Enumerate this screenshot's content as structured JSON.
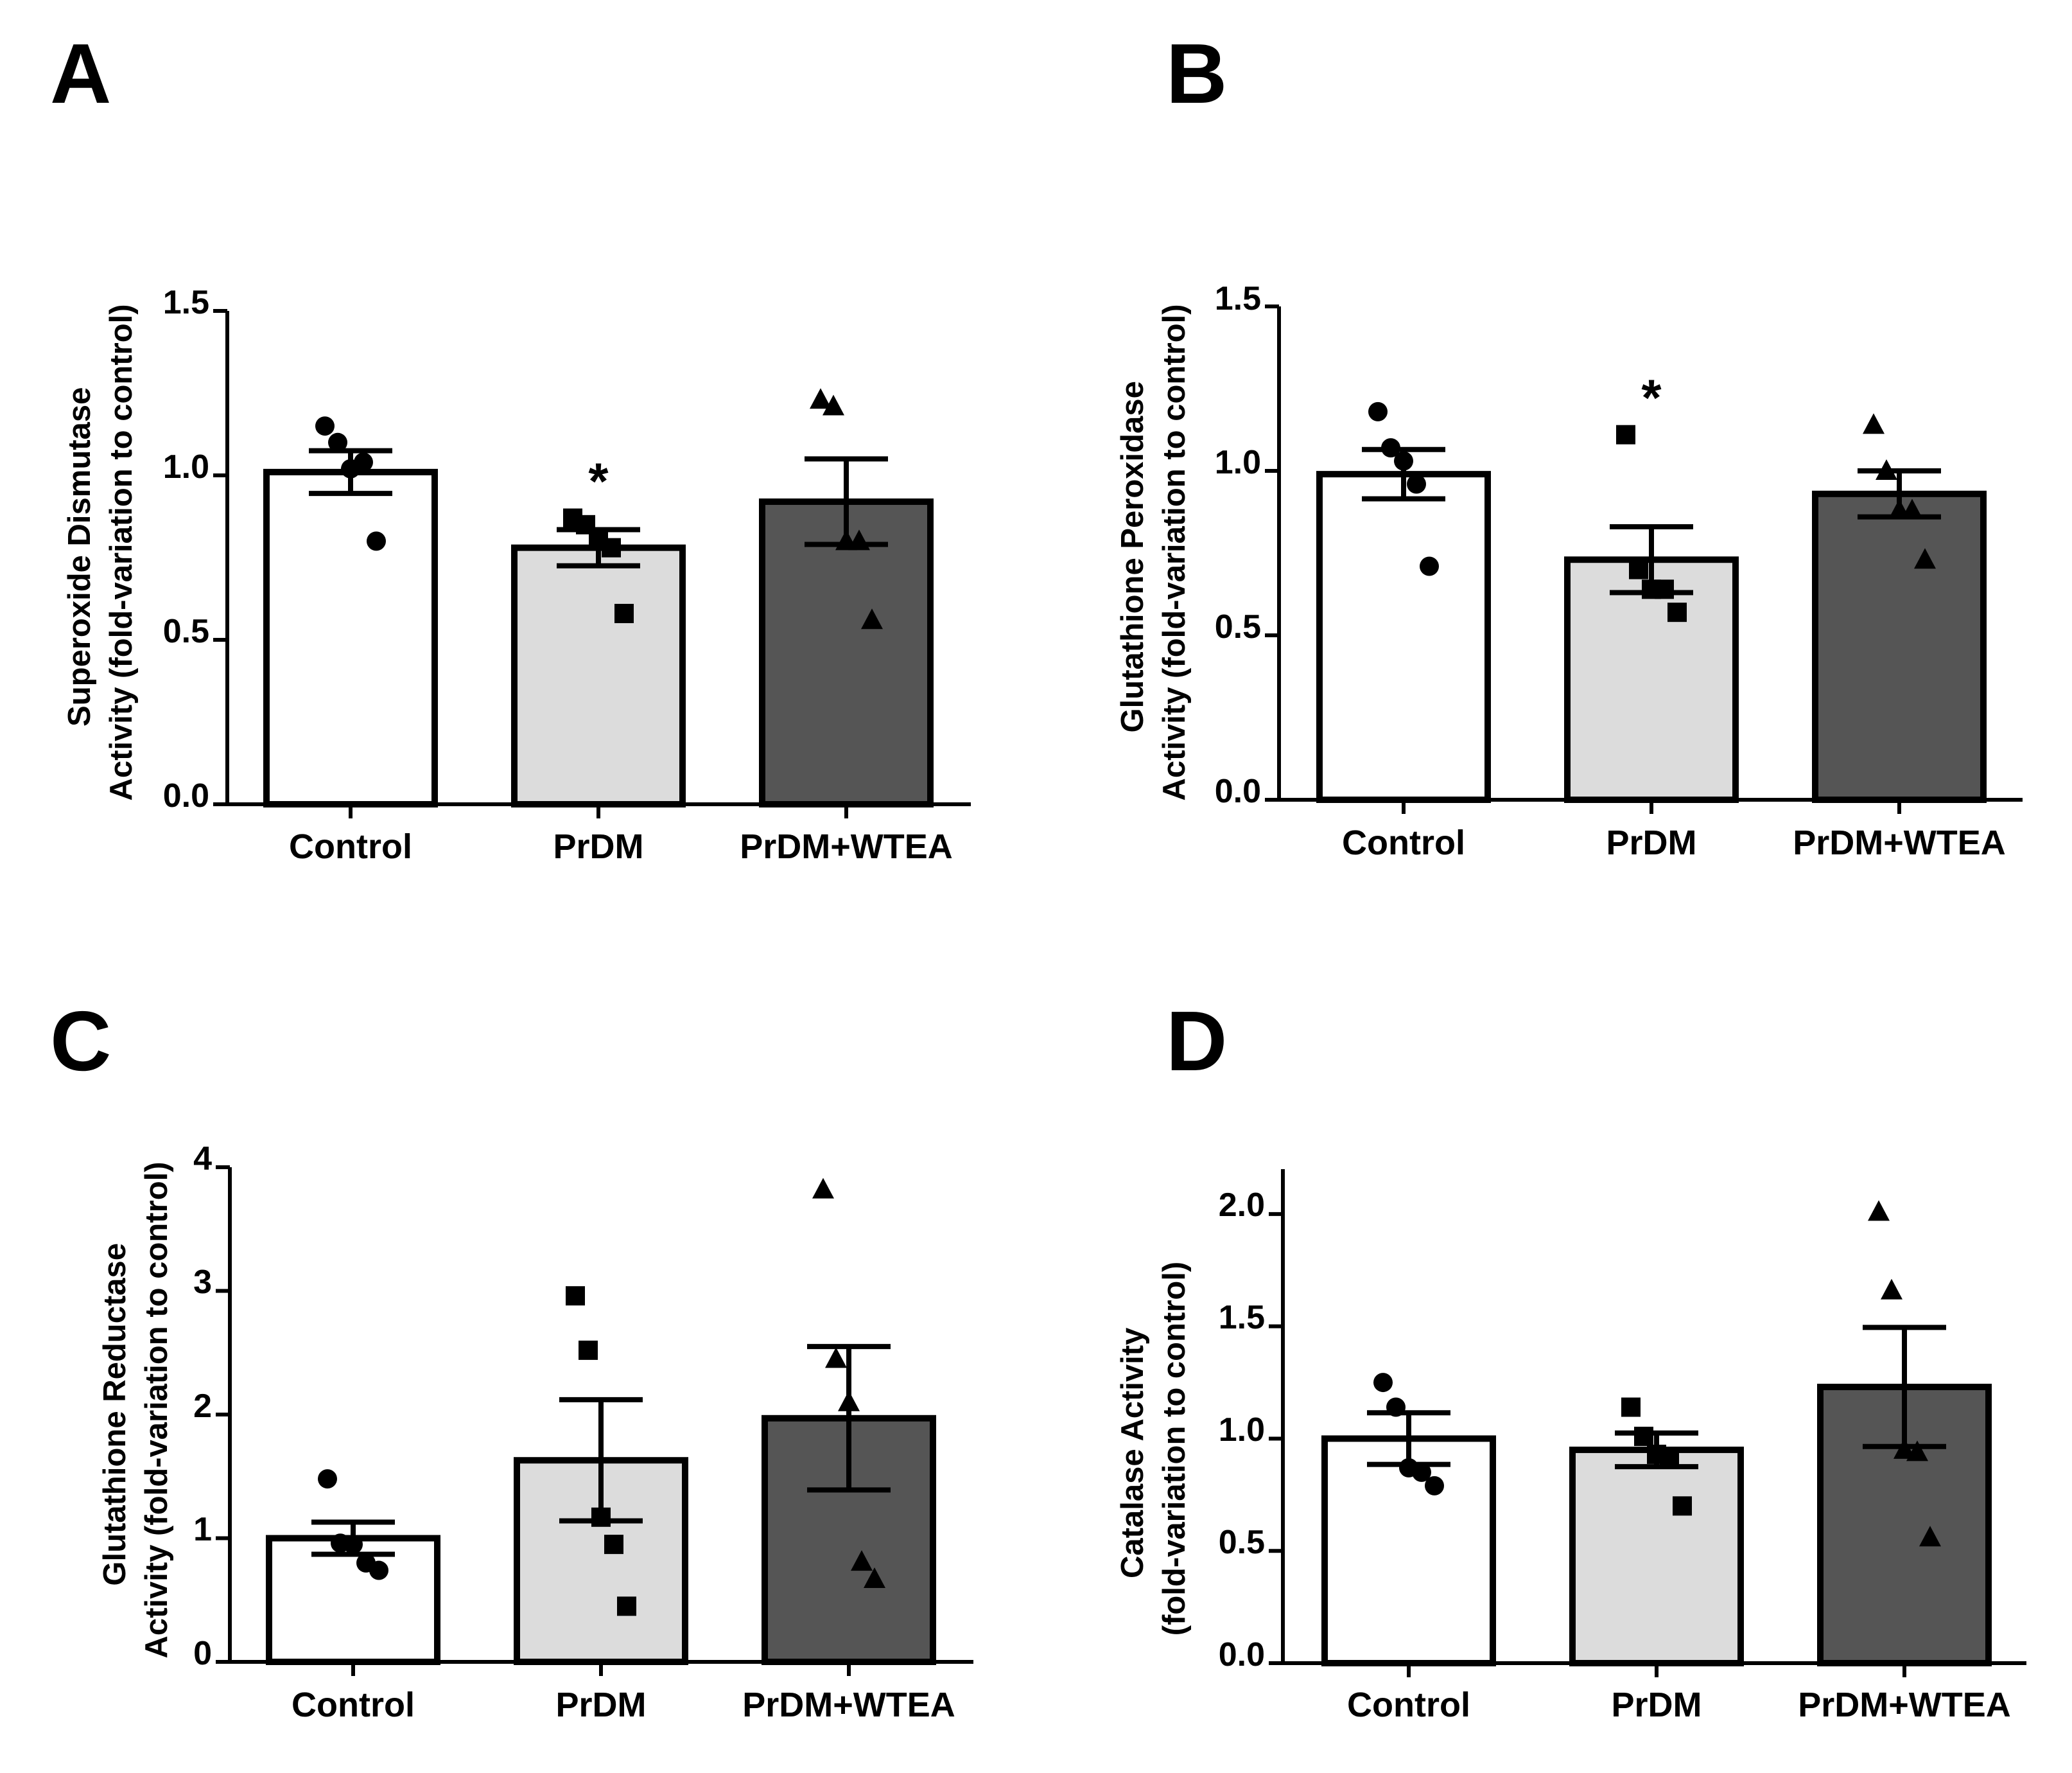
{
  "figure": {
    "colors": {
      "axis": "#000000",
      "bar_stroke": "#000000",
      "point": "#000000"
    }
  },
  "chart_data": [
    {
      "type": "bar",
      "panel": "A",
      "ylabel_lines": [
        "Superoxide Dismutase",
        "Activity (fold-variation to control)"
      ],
      "categories": [
        "Control",
        "PrDM",
        "PrDM+WTEA"
      ],
      "colors": [
        "#ffffff",
        "#dcdcdc",
        "#555555"
      ],
      "markers": [
        "circle",
        "square",
        "triangle"
      ],
      "ylim": [
        0,
        1.5
      ],
      "yticks": [
        0.0,
        0.5,
        1.0,
        1.5
      ],
      "ytick_labels": [
        "0.0",
        "0.5",
        "1.0",
        "1.5"
      ],
      "values": [
        1.01,
        0.78,
        0.92
      ],
      "sem": [
        0.065,
        0.055,
        0.13
      ],
      "points": [
        [
          1.15,
          1.1,
          1.02,
          1.04,
          0.8
        ],
        [
          0.87,
          0.85,
          0.8,
          0.78,
          0.58
        ],
        [
          1.23,
          1.21,
          0.8,
          0.8,
          0.56
        ]
      ],
      "significance": [
        "",
        "*",
        ""
      ]
    },
    {
      "type": "bar",
      "panel": "B",
      "ylabel_lines": [
        "Glutathione Peroxidase",
        "Activity (fold-variation to control)"
      ],
      "categories": [
        "Control",
        "PrDM",
        "PrDM+WTEA"
      ],
      "colors": [
        "#ffffff",
        "#dcdcdc",
        "#555555"
      ],
      "markers": [
        "circle",
        "square",
        "triangle"
      ],
      "ylim": [
        0,
        1.5
      ],
      "yticks": [
        0.0,
        0.5,
        1.0,
        1.5
      ],
      "ytick_labels": [
        "0.0",
        "0.5",
        "1.0",
        "1.5"
      ],
      "values": [
        0.99,
        0.73,
        0.93
      ],
      "sem": [
        0.075,
        0.1,
        0.07
      ],
      "points": [
        [
          1.18,
          1.07,
          1.03,
          0.96,
          0.71
        ],
        [
          1.11,
          0.7,
          0.64,
          0.64,
          0.57
        ],
        [
          1.14,
          1.0,
          0.88,
          0.88,
          0.73
        ]
      ],
      "significance": [
        "",
        "*",
        ""
      ]
    },
    {
      "type": "bar",
      "panel": "C",
      "ylabel_lines": [
        "Glutathione Reductase",
        "Activity (fold-variation to control)"
      ],
      "categories": [
        "Control",
        "PrDM",
        "PrDM+WTEA"
      ],
      "colors": [
        "#ffffff",
        "#dcdcdc",
        "#555555"
      ],
      "markers": [
        "circle",
        "square",
        "triangle"
      ],
      "ylim": [
        0,
        4
      ],
      "yticks": [
        0,
        1,
        2,
        3,
        4
      ],
      "ytick_labels": [
        "0",
        "1",
        "2",
        "3",
        "4"
      ],
      "values": [
        1.0,
        1.63,
        1.97
      ],
      "sem": [
        0.13,
        0.49,
        0.58
      ],
      "points": [
        [
          1.48,
          0.96,
          0.95,
          0.8,
          0.74
        ],
        [
          2.96,
          2.52,
          1.17,
          0.95,
          0.45
        ],
        [
          3.82,
          2.45,
          2.1,
          0.81,
          0.67
        ]
      ],
      "significance": [
        "",
        "",
        ""
      ]
    },
    {
      "type": "bar",
      "panel": "D",
      "ylabel_lines": [
        "Catalase Activity",
        "(fold-variation to control)"
      ],
      "categories": [
        "Control",
        "PrDM",
        "PrDM+WTEA"
      ],
      "colors": [
        "#ffffff",
        "#dcdcdc",
        "#555555"
      ],
      "markers": [
        "circle",
        "square",
        "triangle"
      ],
      "ylim": [
        0,
        2.2
      ],
      "yticks": [
        0.0,
        0.5,
        1.0,
        1.5,
        2.0
      ],
      "ytick_labels": [
        "0.0",
        "0.5",
        "1.0",
        "1.5",
        "2.0"
      ],
      "values": [
        1.0,
        0.95,
        1.23
      ],
      "sem": [
        0.115,
        0.075,
        0.265
      ],
      "points": [
        [
          1.25,
          1.14,
          0.87,
          0.85,
          0.79
        ],
        [
          1.14,
          1.01,
          0.93,
          0.91,
          0.7
        ],
        [
          2.01,
          1.66,
          0.95,
          0.94,
          0.56
        ]
      ],
      "significance": [
        "",
        "",
        ""
      ]
    }
  ]
}
